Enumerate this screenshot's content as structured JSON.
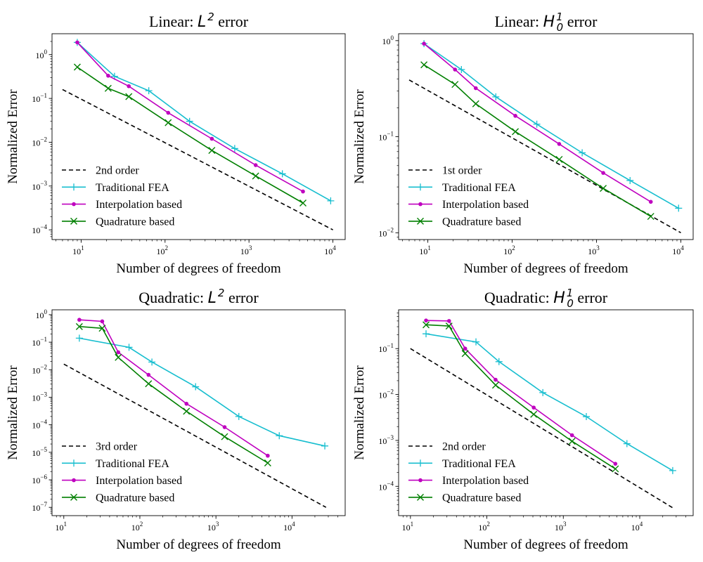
{
  "figure": {
    "xlabel": "Number of degrees of freedom",
    "ylabel": "Normalized Error"
  },
  "series_colors": {
    "traditional": "#17becf",
    "interpolation": "#bf00bf",
    "quadrature": "#007f00",
    "reference": "#000000"
  },
  "chart_data": [
    {
      "type": "line",
      "scale": "log-log",
      "title": {
        "prefix": "Linear: ",
        "math": "L",
        "sup": "2",
        "sub": "",
        "suffix": " error"
      },
      "xlabel": "Number of degrees of freedom",
      "ylabel": "Normalized Error",
      "xlim": [
        4.5,
        14000
      ],
      "ylim": [
        6e-05,
        3
      ],
      "xticks": [
        {
          "base": "10",
          "exp": "1",
          "v": 10
        },
        {
          "base": "10",
          "exp": "2",
          "v": 100
        },
        {
          "base": "10",
          "exp": "3",
          "v": 1000
        },
        {
          "base": "10",
          "exp": "4",
          "v": 10000
        }
      ],
      "yticks": [
        {
          "base": "10",
          "exp": "−4",
          "v": 0.0001
        },
        {
          "base": "10",
          "exp": "−3",
          "v": 0.001
        },
        {
          "base": "10",
          "exp": "−2",
          "v": 0.01
        },
        {
          "base": "10",
          "exp": "−1",
          "v": 0.1
        },
        {
          "base": "10",
          "exp": "0",
          "v": 1
        }
      ],
      "legend_position": "lower-left",
      "series": [
        {
          "name": "2nd order",
          "key": "reference",
          "marker": "none",
          "dashed": true,
          "x": [
            6,
            10000
          ],
          "y": [
            0.16,
            0.0001
          ]
        },
        {
          "name": "Traditional FEA",
          "key": "traditional",
          "marker": "plus",
          "x": [
            9,
            25,
            64,
            196,
            676,
            2500,
            9409
          ],
          "y": [
            1.9,
            0.32,
            0.15,
            0.03,
            0.0072,
            0.0019,
            0.00046
          ]
        },
        {
          "name": "Interpolation based",
          "key": "interpolation",
          "marker": "dot",
          "x": [
            9,
            21,
            37,
            109,
            361,
            1201,
            4401
          ],
          "y": [
            1.9,
            0.33,
            0.19,
            0.047,
            0.012,
            0.003,
            0.00075
          ]
        },
        {
          "name": "Quadrature based",
          "key": "quadrature",
          "marker": "x",
          "x": [
            9,
            21,
            37,
            109,
            361,
            1201,
            4401
          ],
          "y": [
            0.52,
            0.17,
            0.11,
            0.028,
            0.0065,
            0.0017,
            0.00041
          ]
        }
      ]
    },
    {
      "type": "line",
      "scale": "log-log",
      "title": {
        "prefix": "Linear: ",
        "math": "H",
        "sup": "1",
        "sub": "0",
        "suffix": " error"
      },
      "xlabel": "Number of degrees of freedom",
      "ylabel": "Normalized Error",
      "xlim": [
        4.5,
        14000
      ],
      "ylim": [
        0.0085,
        1.18
      ],
      "xticks": [
        {
          "base": "10",
          "exp": "1",
          "v": 10
        },
        {
          "base": "10",
          "exp": "2",
          "v": 100
        },
        {
          "base": "10",
          "exp": "3",
          "v": 1000
        },
        {
          "base": "10",
          "exp": "4",
          "v": 10000
        }
      ],
      "yticks": [
        {
          "base": "10",
          "exp": "−2",
          "v": 0.01
        },
        {
          "base": "10",
          "exp": "−1",
          "v": 0.1
        },
        {
          "base": "10",
          "exp": "0",
          "v": 1
        }
      ],
      "legend_position": "lower-left",
      "series": [
        {
          "name": "1st order",
          "key": "reference",
          "marker": "none",
          "dashed": true,
          "x": [
            6,
            10000
          ],
          "y": [
            0.39,
            0.01
          ]
        },
        {
          "name": "Traditional FEA",
          "key": "traditional",
          "marker": "plus",
          "x": [
            9,
            25,
            64,
            196,
            676,
            2500,
            9409
          ],
          "y": [
            0.93,
            0.5,
            0.26,
            0.135,
            0.068,
            0.035,
            0.018
          ]
        },
        {
          "name": "Interpolation based",
          "key": "interpolation",
          "marker": "dot",
          "x": [
            9,
            21,
            37,
            109,
            361,
            1201,
            4401
          ],
          "y": [
            0.93,
            0.5,
            0.32,
            0.165,
            0.084,
            0.042,
            0.021
          ]
        },
        {
          "name": "Quadrature based",
          "key": "quadrature",
          "marker": "x",
          "x": [
            9,
            21,
            37,
            109,
            361,
            1201,
            4401
          ],
          "y": [
            0.56,
            0.35,
            0.22,
            0.113,
            0.058,
            0.029,
            0.0148
          ]
        }
      ]
    },
    {
      "type": "line",
      "scale": "log-log",
      "title": {
        "prefix": "Quadratic: ",
        "math": "L",
        "sup": "2",
        "sub": "",
        "suffix": " error"
      },
      "xlabel": "Number of degrees of freedom",
      "ylabel": "Normalized Error",
      "xlim": [
        7,
        50000
      ],
      "ylim": [
        5e-08,
        1.5
      ],
      "xticks": [
        {
          "base": "10",
          "exp": "1",
          "v": 10
        },
        {
          "base": "10",
          "exp": "2",
          "v": 100
        },
        {
          "base": "10",
          "exp": "3",
          "v": 1000
        },
        {
          "base": "10",
          "exp": "4",
          "v": 10000
        }
      ],
      "yticks": [
        {
          "base": "10",
          "exp": "−7",
          "v": 1e-07
        },
        {
          "base": "10",
          "exp": "−6",
          "v": 1e-06
        },
        {
          "base": "10",
          "exp": "−5",
          "v": 1e-05
        },
        {
          "base": "10",
          "exp": "−4",
          "v": 0.0001
        },
        {
          "base": "10",
          "exp": "−3",
          "v": 0.001
        },
        {
          "base": "10",
          "exp": "−2",
          "v": 0.01
        },
        {
          "base": "10",
          "exp": "−1",
          "v": 0.1
        },
        {
          "base": "10",
          "exp": "0",
          "v": 1
        }
      ],
      "legend_position": "lower-left",
      "series": [
        {
          "name": "3rd order",
          "key": "reference",
          "marker": "none",
          "dashed": true,
          "x": [
            10,
            28000
          ],
          "y": [
            0.016,
            1e-07
          ]
        },
        {
          "name": "Traditional FEA",
          "key": "traditional",
          "marker": "plus",
          "x": [
            16,
            72,
            144,
            540,
            2000,
            6800,
            27000
          ],
          "y": [
            0.14,
            0.065,
            0.019,
            0.0024,
            0.0002,
            4e-05,
            1.7e-05
          ]
        },
        {
          "name": "Interpolation based",
          "key": "interpolation",
          "marker": "dot",
          "x": [
            16,
            32,
            52,
            130,
            410,
            1300,
            4800
          ],
          "y": [
            0.65,
            0.57,
            0.043,
            0.0065,
            0.00058,
            8.2e-05,
            7.5e-06
          ]
        },
        {
          "name": "Quadrature based",
          "key": "quadrature",
          "marker": "x",
          "x": [
            16,
            32,
            52,
            130,
            410,
            1300,
            4800
          ],
          "y": [
            0.37,
            0.32,
            0.028,
            0.0031,
            0.00031,
            3.7e-05,
            4.1e-06
          ]
        }
      ]
    },
    {
      "type": "line",
      "scale": "log-log",
      "title": {
        "prefix": "Quadratic: ",
        "math": "H",
        "sup": "1",
        "sub": "0",
        "suffix": " error"
      },
      "xlabel": "Number of degrees of freedom",
      "ylabel": "Normalized Error",
      "xlim": [
        7,
        50000
      ],
      "ylim": [
        2.3e-05,
        0.7
      ],
      "xticks": [
        {
          "base": "10",
          "exp": "1",
          "v": 10
        },
        {
          "base": "10",
          "exp": "2",
          "v": 100
        },
        {
          "base": "10",
          "exp": "3",
          "v": 1000
        },
        {
          "base": "10",
          "exp": "4",
          "v": 10000
        }
      ],
      "yticks": [
        {
          "base": "10",
          "exp": "−4",
          "v": 0.0001
        },
        {
          "base": "10",
          "exp": "−3",
          "v": 0.001
        },
        {
          "base": "10",
          "exp": "−2",
          "v": 0.01
        },
        {
          "base": "10",
          "exp": "−1",
          "v": 0.1
        }
      ],
      "legend_position": "lower-left",
      "series": [
        {
          "name": "2nd order",
          "key": "reference",
          "marker": "none",
          "dashed": true,
          "x": [
            10,
            28000
          ],
          "y": [
            0.1,
            3.3e-05
          ]
        },
        {
          "name": "Traditional FEA",
          "key": "traditional",
          "marker": "plus",
          "x": [
            16,
            72,
            144,
            540,
            2000,
            6800,
            27000
          ],
          "y": [
            0.21,
            0.14,
            0.052,
            0.011,
            0.0033,
            0.00085,
            0.00022
          ]
        },
        {
          "name": "Interpolation based",
          "key": "interpolation",
          "marker": "dot",
          "x": [
            16,
            32,
            52,
            130,
            410,
            1300,
            4800
          ],
          "y": [
            0.41,
            0.4,
            0.1,
            0.021,
            0.0052,
            0.0013,
            0.00031
          ]
        },
        {
          "name": "Quadrature based",
          "key": "quadrature",
          "marker": "x",
          "x": [
            16,
            32,
            52,
            130,
            410,
            1300,
            4800
          ],
          "y": [
            0.33,
            0.31,
            0.078,
            0.016,
            0.0037,
            0.00096,
            0.00024
          ]
        }
      ]
    }
  ]
}
